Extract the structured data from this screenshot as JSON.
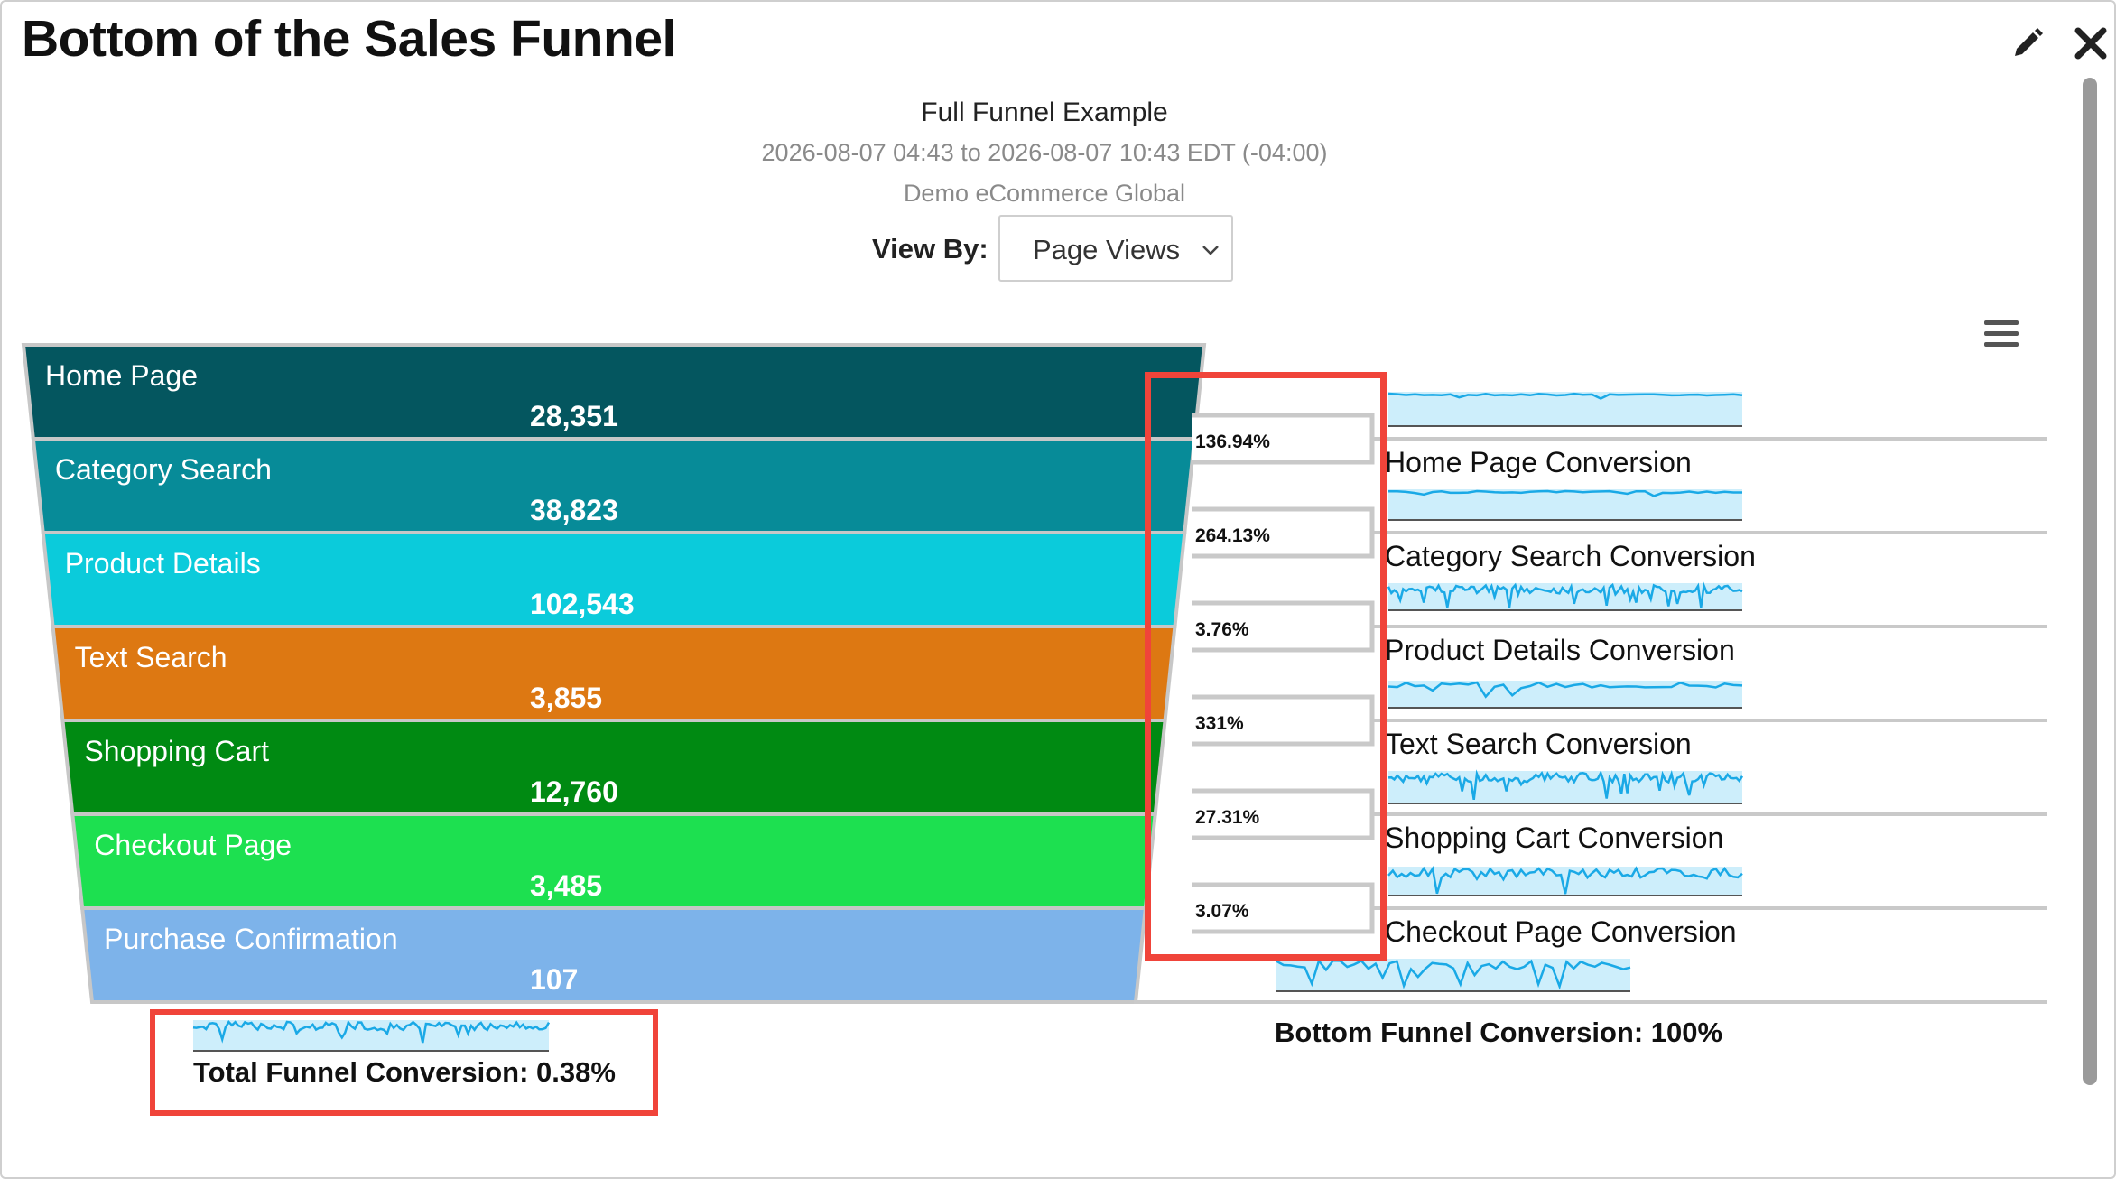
{
  "panel": {
    "title": "Bottom of the Sales Funnel",
    "edit_icon": "pencil-icon",
    "close_icon": "close-icon"
  },
  "report": {
    "title": "Full Funnel Example",
    "date_range": "2026-08-07 04:43 to 2026-08-07 10:43 EDT (-04:00)",
    "site": "Demo eCommerce Global"
  },
  "view_by": {
    "label": "View By:",
    "selected": "Page Views"
  },
  "chart_menu_icon": "hamburger-menu-icon",
  "chart_data": {
    "type": "funnel",
    "stages": [
      {
        "name": "Home Page",
        "value": 28351,
        "value_label": "28,351",
        "color": "#04565f"
      },
      {
        "name": "Category Search",
        "value": 38823,
        "value_label": "38,823",
        "color": "#078b98"
      },
      {
        "name": "Product Details",
        "value": 102543,
        "value_label": "102,543",
        "color": "#0bcbdb"
      },
      {
        "name": "Text Search",
        "value": 3855,
        "value_label": "3,855",
        "color": "#dd7812"
      },
      {
        "name": "Shopping Cart",
        "value": 12760,
        "value_label": "12,760",
        "color": "#008a12"
      },
      {
        "name": "Checkout Page",
        "value": 3485,
        "value_label": "3,485",
        "color": "#1de050"
      },
      {
        "name": "Purchase Confirmation",
        "value": 107,
        "value_label": "107",
        "color": "#7db3ea"
      }
    ],
    "step_conversions": [
      "136.94%",
      "264.13%",
      "3.76%",
      "331%",
      "27.31%",
      "3.07%"
    ],
    "conversion_labels": [
      "Home Page Conversion",
      "Category Search Conversion",
      "Product Details Conversion",
      "Text Search Conversion",
      "Shopping Cart Conversion",
      "Checkout Page Conversion"
    ],
    "sparkline_colors": {
      "stroke": "#1aa9e6",
      "fill": "#cdeefb"
    },
    "total_conversion": "Total Funnel Conversion: 0.38%",
    "bottom_conversion": "Bottom Funnel Conversion: 100%"
  }
}
